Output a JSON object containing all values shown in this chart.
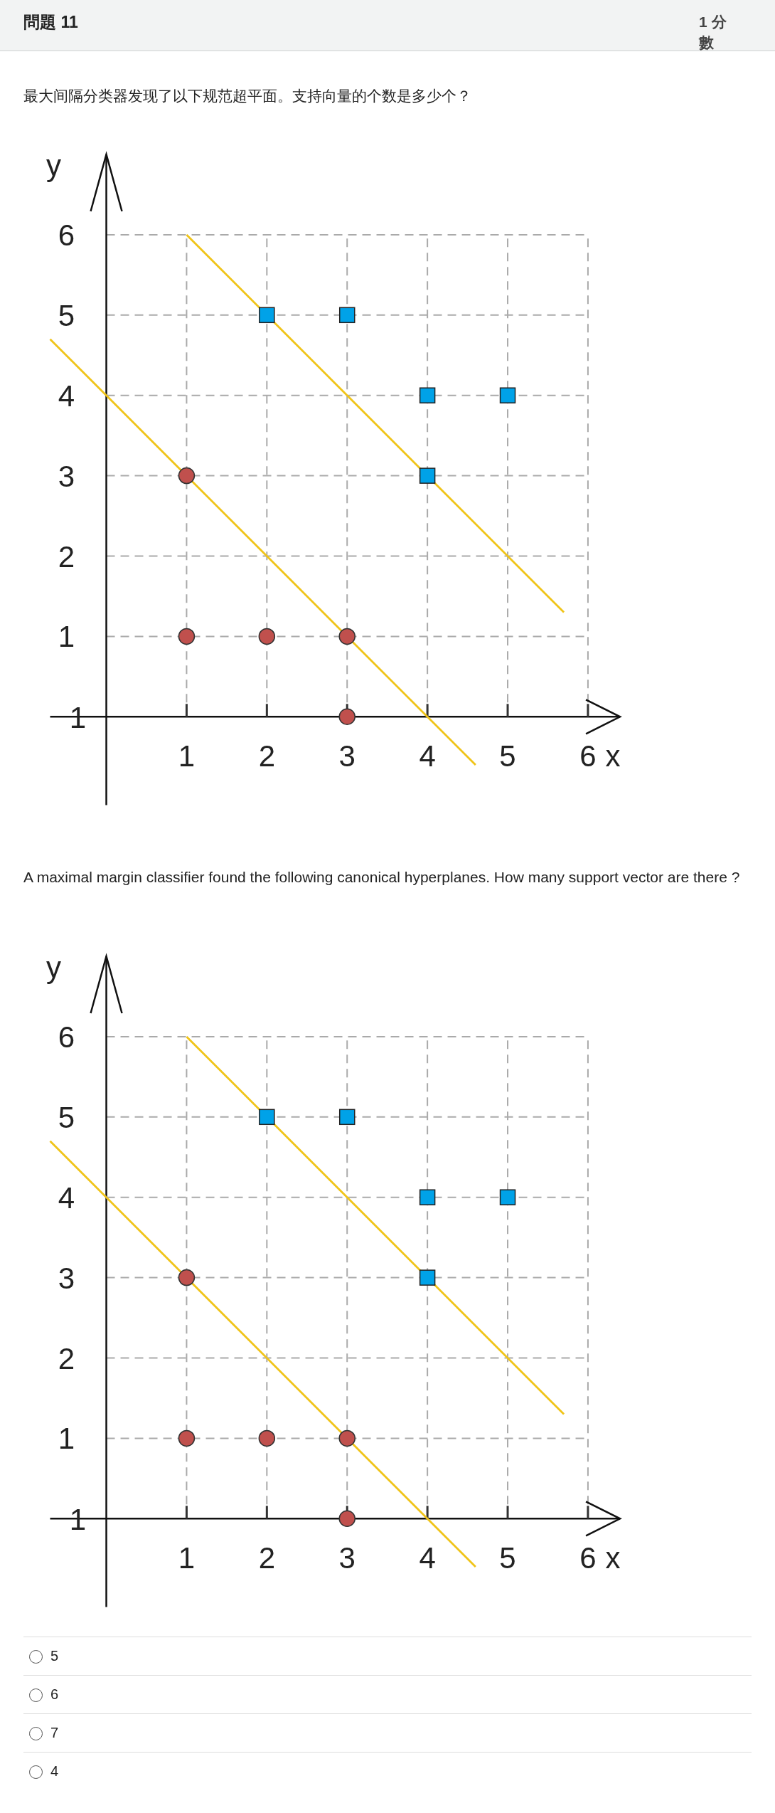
{
  "chart_data": [
    {
      "type": "scatter",
      "title": "問題 11",
      "subtitle": "最大间隔分类器发现了以下规范超平面。支持向量的个数是多少个？",
      "xlabel": "x",
      "ylabel": "y",
      "xlim": [
        -0.7,
        6.4
      ],
      "ylim": [
        -1.1,
        7.0
      ],
      "xticks": [
        1,
        2,
        3,
        4,
        5,
        6
      ],
      "yticks": [
        1,
        2,
        3,
        4,
        5,
        6
      ],
      "grid": true,
      "annotations": [
        "1 分數",
        "1"
      ],
      "series": [
        {
          "type": "line",
          "color": "#f0c419",
          "x": [
            1,
            5.7
          ],
          "values": [
            6,
            1.3
          ]
        },
        {
          "type": "line",
          "color": "#f0c419",
          "x": [
            -0.7,
            4.6
          ],
          "values": [
            4.7,
            -0.6
          ]
        },
        {
          "type": "scatter",
          "marker": "circle",
          "color": "#c0504d",
          "x": [
            1,
            1,
            2,
            3,
            3
          ],
          "values": [
            3,
            1,
            1,
            1,
            0
          ]
        },
        {
          "type": "scatter",
          "marker": "square",
          "color": "#00a2e8",
          "x": [
            2,
            3,
            4,
            5,
            4
          ],
          "values": [
            5,
            5,
            4,
            4,
            3
          ]
        }
      ]
    },
    {
      "type": "scatter",
      "title": "A maximal margin classifier found the following canonical hyperplanes. How many support vector are there ?",
      "xlabel": "x",
      "ylabel": "y",
      "xlim": [
        -0.7,
        6.4
      ],
      "ylim": [
        -1.1,
        7.0
      ],
      "xticks": [
        1,
        2,
        3,
        4,
        5,
        6
      ],
      "yticks": [
        1,
        2,
        3,
        4,
        5,
        6
      ],
      "grid": true,
      "annotations": [
        "5",
        "6",
        "7",
        "4",
        "1"
      ],
      "series": [
        {
          "type": "line",
          "color": "#f0c419",
          "x": [
            1,
            5.7
          ],
          "values": [
            6,
            1.3
          ]
        },
        {
          "type": "line",
          "color": "#f0c419",
          "x": [
            -0.7,
            4.6
          ],
          "values": [
            4.7,
            -0.6
          ]
        },
        {
          "type": "scatter",
          "marker": "circle",
          "color": "#c0504d",
          "x": [
            1,
            1,
            2,
            3,
            3
          ],
          "values": [
            3,
            1,
            1,
            1,
            0
          ]
        },
        {
          "type": "scatter",
          "marker": "square",
          "color": "#00a2e8",
          "x": [
            2,
            3,
            4,
            5,
            4
          ],
          "values": [
            5,
            5,
            4,
            4,
            3
          ]
        }
      ]
    }
  ]
}
